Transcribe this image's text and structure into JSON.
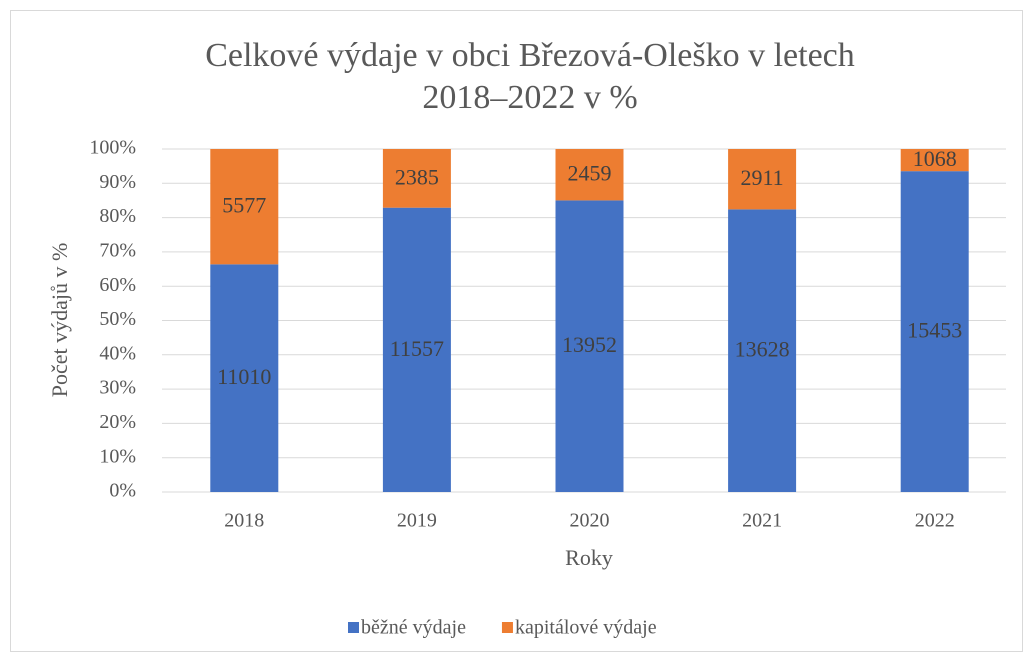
{
  "chart_data": {
    "type": "stacked_percent",
    "title": [
      "Celkové výdaje v obci Březová-Oleško v letech",
      "2018–2022 v %"
    ],
    "x_label": "Roky",
    "y_label": "Počet výdajů v %",
    "categories": [
      "2018",
      "2019",
      "2020",
      "2021",
      "2022"
    ],
    "series": [
      {
        "name": "běžné výdaje",
        "color": "#4472c4",
        "values": [
          11010,
          11557,
          13952,
          13628,
          15453
        ]
      },
      {
        "name": "kapitálové výdaje",
        "color": "#ed7d31",
        "values": [
          5577,
          2385,
          2459,
          2911,
          1068
        ]
      }
    ],
    "ylim": [
      0,
      100
    ],
    "yticks": [
      {
        "value": 0,
        "label": "0%"
      },
      {
        "value": 10,
        "label": "10%"
      },
      {
        "value": 20,
        "label": "20%"
      },
      {
        "value": 30,
        "label": "30%"
      },
      {
        "value": 40,
        "label": "40%"
      },
      {
        "value": 50,
        "label": "50%"
      },
      {
        "value": 60,
        "label": "60%"
      },
      {
        "value": 70,
        "label": "70%"
      },
      {
        "value": 80,
        "label": "80%"
      },
      {
        "value": 90,
        "label": "90%"
      },
      {
        "value": 100,
        "label": "100%"
      }
    ],
    "grid": true,
    "legend": "bottom"
  }
}
